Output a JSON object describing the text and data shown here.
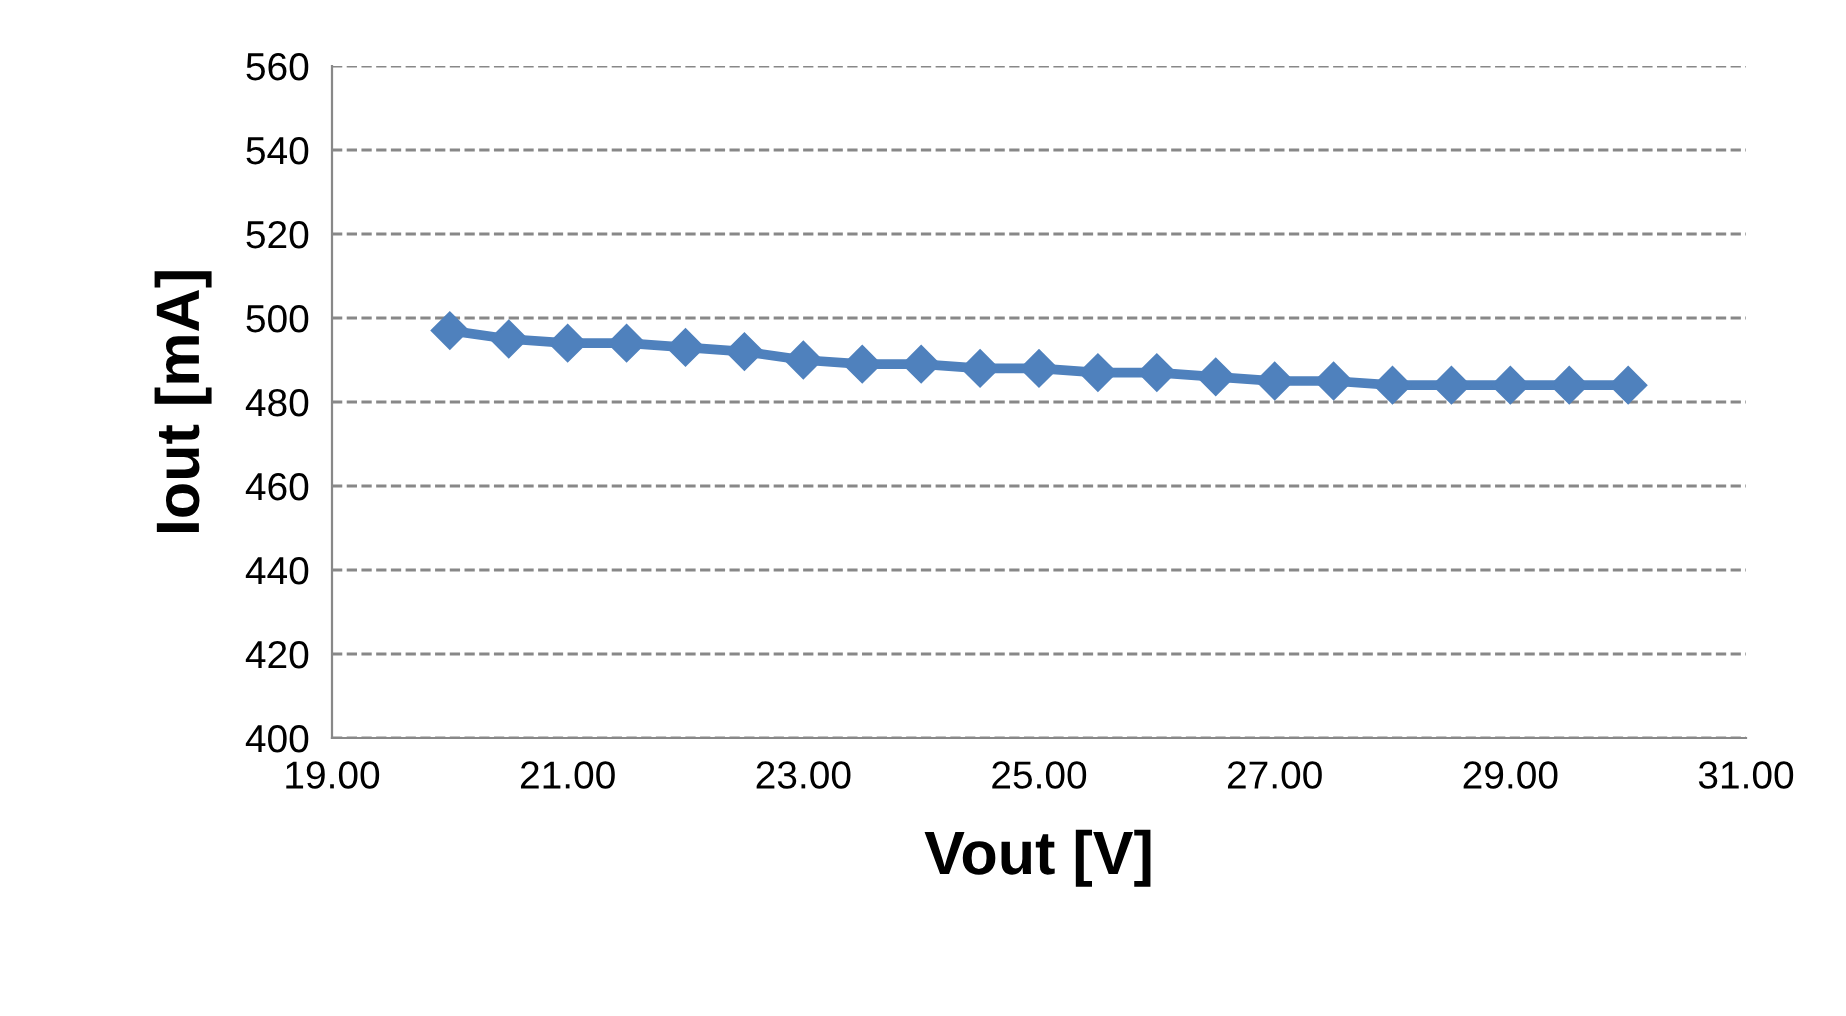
{
  "chart_data": {
    "type": "line",
    "xlabel": "Vout [V]",
    "ylabel": "Iout [mA]",
    "x": [
      20,
      20.5,
      21,
      21.5,
      22,
      22.5,
      23,
      23.5,
      24,
      24.5,
      25,
      25.5,
      26,
      26.5,
      27,
      27.5,
      28,
      28.5,
      29,
      29.5,
      30
    ],
    "series": [
      {
        "color": "#4f81bd",
        "values": [
          497,
          495,
          494,
          494,
          493,
          492,
          490,
          489,
          489,
          488,
          488,
          487,
          487,
          486,
          485,
          485,
          484,
          484,
          484,
          484,
          484
        ]
      }
    ],
    "xlim": [
      19,
      31
    ],
    "xticks": [
      {
        "value": 19,
        "label": "19.00"
      },
      {
        "value": 21,
        "label": "21.00"
      },
      {
        "value": 23,
        "label": "23.00"
      },
      {
        "value": 25,
        "label": "25.00"
      },
      {
        "value": 27,
        "label": "27.00"
      },
      {
        "value": 29,
        "label": "29.00"
      },
      {
        "value": 31,
        "label": "31.00"
      }
    ],
    "ylim": [
      400,
      560
    ],
    "yticks": [
      400,
      420,
      440,
      460,
      480,
      500,
      520,
      540,
      560
    ],
    "grid": "y",
    "marker": "diamond",
    "line_style": "solid",
    "legend": false
  }
}
